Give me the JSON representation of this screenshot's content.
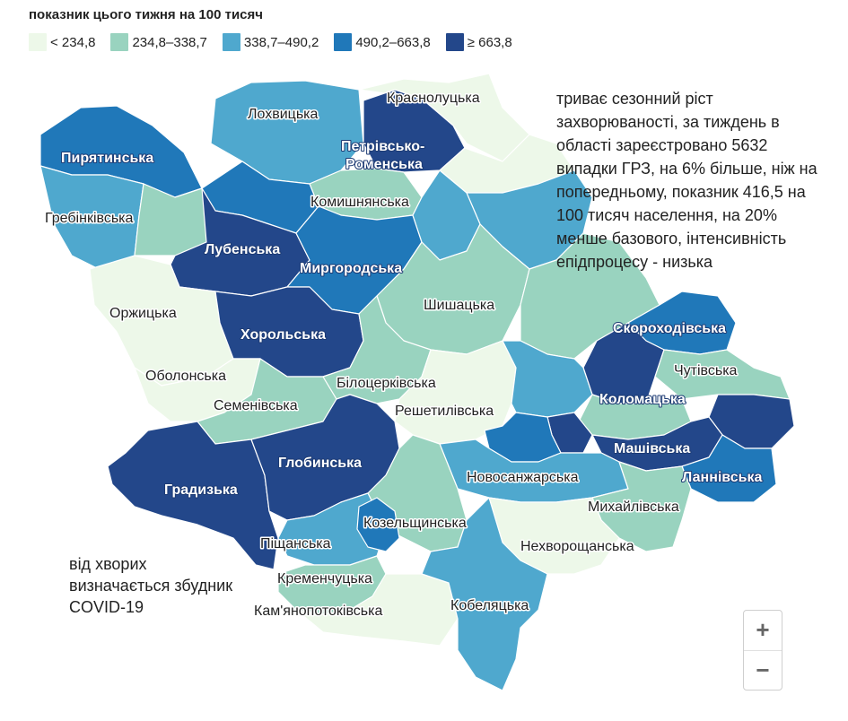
{
  "legend": {
    "title": "показник цього тижня на 100 тисяч",
    "items": [
      {
        "label": "< 234,8",
        "color": "#edf8e9"
      },
      {
        "label": "234,8–338,7",
        "color": "#99d3bf"
      },
      {
        "label": "338,7–490,2",
        "color": "#4fa8ce"
      },
      {
        "label": "490,2–663,8",
        "color": "#2078b9"
      },
      {
        "label": "≥ 663,8",
        "color": "#23478a"
      }
    ]
  },
  "info_text": "триває сезонний ріст захворюваності, за тиждень в області зареєстровано 5632 випадки ГРЗ, на 6% більше, ніж на попередньому, показник 416,5 на 100 тисяч населення, на 20% менше базового, інтенсивність епідпроцесу - низька",
  "note_text": "від хворих визначається збудник COVID-19",
  "zoom": {
    "in": "+",
    "out": "−"
  },
  "regions": {
    "krasnolutska": "Краснолуцька",
    "lokhvytska": "Лохвицька",
    "petrivsko_romenska_1": "Петрівсько-",
    "petrivsko_romenska_2": "Роменська",
    "pyriatynska": "Пирятинська",
    "komyshnianska": "Комишнянська",
    "hrebinkivska": "Гребінківська",
    "lubenska": "Лубенська",
    "myrhorodska": "Миргородська",
    "orzhytska": "Оржицька",
    "shyshatska": "Шишацька",
    "skorokhodivska": "Скороходівська",
    "khorolska": "Хорольська",
    "obolonska": "Оболонська",
    "chutivska": "Чутівська",
    "bilotserkivska": "Білоцерківська",
    "kolomatska": "Коломацька",
    "semenivska": "Семенівська",
    "reshetylivska": "Решетилівська",
    "mashivska": "Машівська",
    "hlobynska": "Глобинська",
    "lannivska": "Ланнівська",
    "novosanzharska": "Новосанжарська",
    "hradyzka": "Градизька",
    "mykhailivska": "Михайлівська",
    "kozelshchynska": "Козельщинська",
    "nekhvoroshchanska": "Нехворощанська",
    "pishchanska": "Піщанська",
    "kremenchutska": "Кременчуцька",
    "kobeliatska": "Кобеляцька",
    "kamianopotokivska": "Кам'янопотоківська"
  }
}
